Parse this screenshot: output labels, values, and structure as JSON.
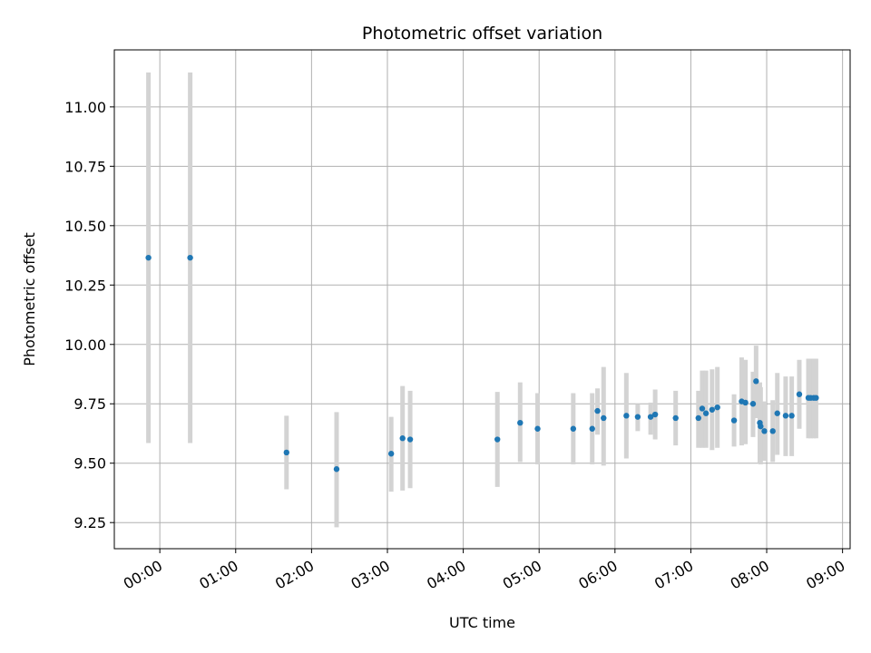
{
  "chart_data": {
    "type": "scatter",
    "title": "Photometric offset variation",
    "xlabel": "UTC time",
    "ylabel": "Photometric offset",
    "x_unit": "hours (UTC)",
    "xlim": [
      "-0.6",
      "9.1"
    ],
    "ylim": [
      9.14,
      11.24
    ],
    "grid": true,
    "x_ticks": [
      {
        "x": 0,
        "label": "00:00"
      },
      {
        "x": 1,
        "label": "01:00"
      },
      {
        "x": 2,
        "label": "02:00"
      },
      {
        "x": 3,
        "label": "03:00"
      },
      {
        "x": 4,
        "label": "04:00"
      },
      {
        "x": 5,
        "label": "05:00"
      },
      {
        "x": 6,
        "label": "06:00"
      },
      {
        "x": 7,
        "label": "07:00"
      },
      {
        "x": 8,
        "label": "08:00"
      },
      {
        "x": 9,
        "label": "09:00"
      }
    ],
    "y_ticks": [
      {
        "y": 9.25,
        "label": "9.25"
      },
      {
        "y": 9.5,
        "label": "9.50"
      },
      {
        "y": 9.75,
        "label": "9.75"
      },
      {
        "y": 10.0,
        "label": "10.00"
      },
      {
        "y": 10.25,
        "label": "10.25"
      },
      {
        "y": 10.5,
        "label": "10.50"
      },
      {
        "y": 10.75,
        "label": "10.75"
      },
      {
        "y": 11.0,
        "label": "11.00"
      }
    ],
    "point_color": "#1f77b4",
    "errorbar_color": "#d3d3d3",
    "points": [
      {
        "x": -0.15,
        "y": 10.365,
        "lo": 9.585,
        "hi": 11.145
      },
      {
        "x": 0.4,
        "y": 10.365,
        "lo": 9.585,
        "hi": 11.145
      },
      {
        "x": 1.67,
        "y": 9.545,
        "lo": 9.39,
        "hi": 9.7
      },
      {
        "x": 2.33,
        "y": 9.475,
        "lo": 9.23,
        "hi": 9.715
      },
      {
        "x": 3.05,
        "y": 9.54,
        "lo": 9.38,
        "hi": 9.695
      },
      {
        "x": 3.2,
        "y": 9.605,
        "lo": 9.385,
        "hi": 9.825
      },
      {
        "x": 3.3,
        "y": 9.6,
        "lo": 9.395,
        "hi": 9.805
      },
      {
        "x": 4.45,
        "y": 9.6,
        "lo": 9.4,
        "hi": 9.8
      },
      {
        "x": 4.75,
        "y": 9.67,
        "lo": 9.505,
        "hi": 9.84
      },
      {
        "x": 4.98,
        "y": 9.645,
        "lo": 9.495,
        "hi": 9.795
      },
      {
        "x": 5.45,
        "y": 9.645,
        "lo": 9.495,
        "hi": 9.795
      },
      {
        "x": 5.7,
        "y": 9.645,
        "lo": 9.495,
        "hi": 9.795
      },
      {
        "x": 5.77,
        "y": 9.72,
        "lo": 9.62,
        "hi": 9.815
      },
      {
        "x": 5.85,
        "y": 9.69,
        "lo": 9.49,
        "hi": 9.905
      },
      {
        "x": 6.15,
        "y": 9.7,
        "lo": 9.52,
        "hi": 9.88
      },
      {
        "x": 6.3,
        "y": 9.695,
        "lo": 9.635,
        "hi": 9.75
      },
      {
        "x": 6.47,
        "y": 9.695,
        "lo": 9.62,
        "hi": 9.755
      },
      {
        "x": 6.53,
        "y": 9.705,
        "lo": 9.6,
        "hi": 9.81
      },
      {
        "x": 6.8,
        "y": 9.69,
        "lo": 9.575,
        "hi": 9.805
      },
      {
        "x": 7.1,
        "y": 9.69,
        "lo": 9.565,
        "hi": 9.805
      },
      {
        "x": 7.15,
        "y": 9.73,
        "lo": 9.565,
        "hi": 9.89
      },
      {
        "x": 7.2,
        "y": 9.71,
        "lo": 9.565,
        "hi": 9.89
      },
      {
        "x": 7.28,
        "y": 9.725,
        "lo": 9.555,
        "hi": 9.895
      },
      {
        "x": 7.35,
        "y": 9.735,
        "lo": 9.565,
        "hi": 9.905
      },
      {
        "x": 7.57,
        "y": 9.68,
        "lo": 9.57,
        "hi": 9.79
      },
      {
        "x": 7.67,
        "y": 9.76,
        "lo": 9.575,
        "hi": 9.945
      },
      {
        "x": 7.72,
        "y": 9.755,
        "lo": 9.58,
        "hi": 9.935
      },
      {
        "x": 7.82,
        "y": 9.75,
        "lo": 9.61,
        "hi": 9.885
      },
      {
        "x": 7.86,
        "y": 9.845,
        "lo": 9.69,
        "hi": 9.995
      },
      {
        "x": 7.91,
        "y": 9.67,
        "lo": 9.5,
        "hi": 9.84
      },
      {
        "x": 7.92,
        "y": 9.655,
        "lo": 9.495,
        "hi": 9.82
      },
      {
        "x": 7.97,
        "y": 9.635,
        "lo": 9.51,
        "hi": 9.76
      },
      {
        "x": 8.08,
        "y": 9.635,
        "lo": 9.505,
        "hi": 9.765
      },
      {
        "x": 8.14,
        "y": 9.71,
        "lo": 9.535,
        "hi": 9.88
      },
      {
        "x": 8.25,
        "y": 9.7,
        "lo": 9.53,
        "hi": 9.865
      },
      {
        "x": 8.33,
        "y": 9.7,
        "lo": 9.53,
        "hi": 9.865
      },
      {
        "x": 8.43,
        "y": 9.79,
        "lo": 9.645,
        "hi": 9.935
      },
      {
        "x": 8.55,
        "y": 9.775,
        "lo": 9.605,
        "hi": 9.94
      },
      {
        "x": 8.58,
        "y": 9.775,
        "lo": 9.605,
        "hi": 9.94
      },
      {
        "x": 8.62,
        "y": 9.775,
        "lo": 9.605,
        "hi": 9.94
      },
      {
        "x": 8.65,
        "y": 9.775,
        "lo": 9.605,
        "hi": 9.94
      }
    ]
  }
}
